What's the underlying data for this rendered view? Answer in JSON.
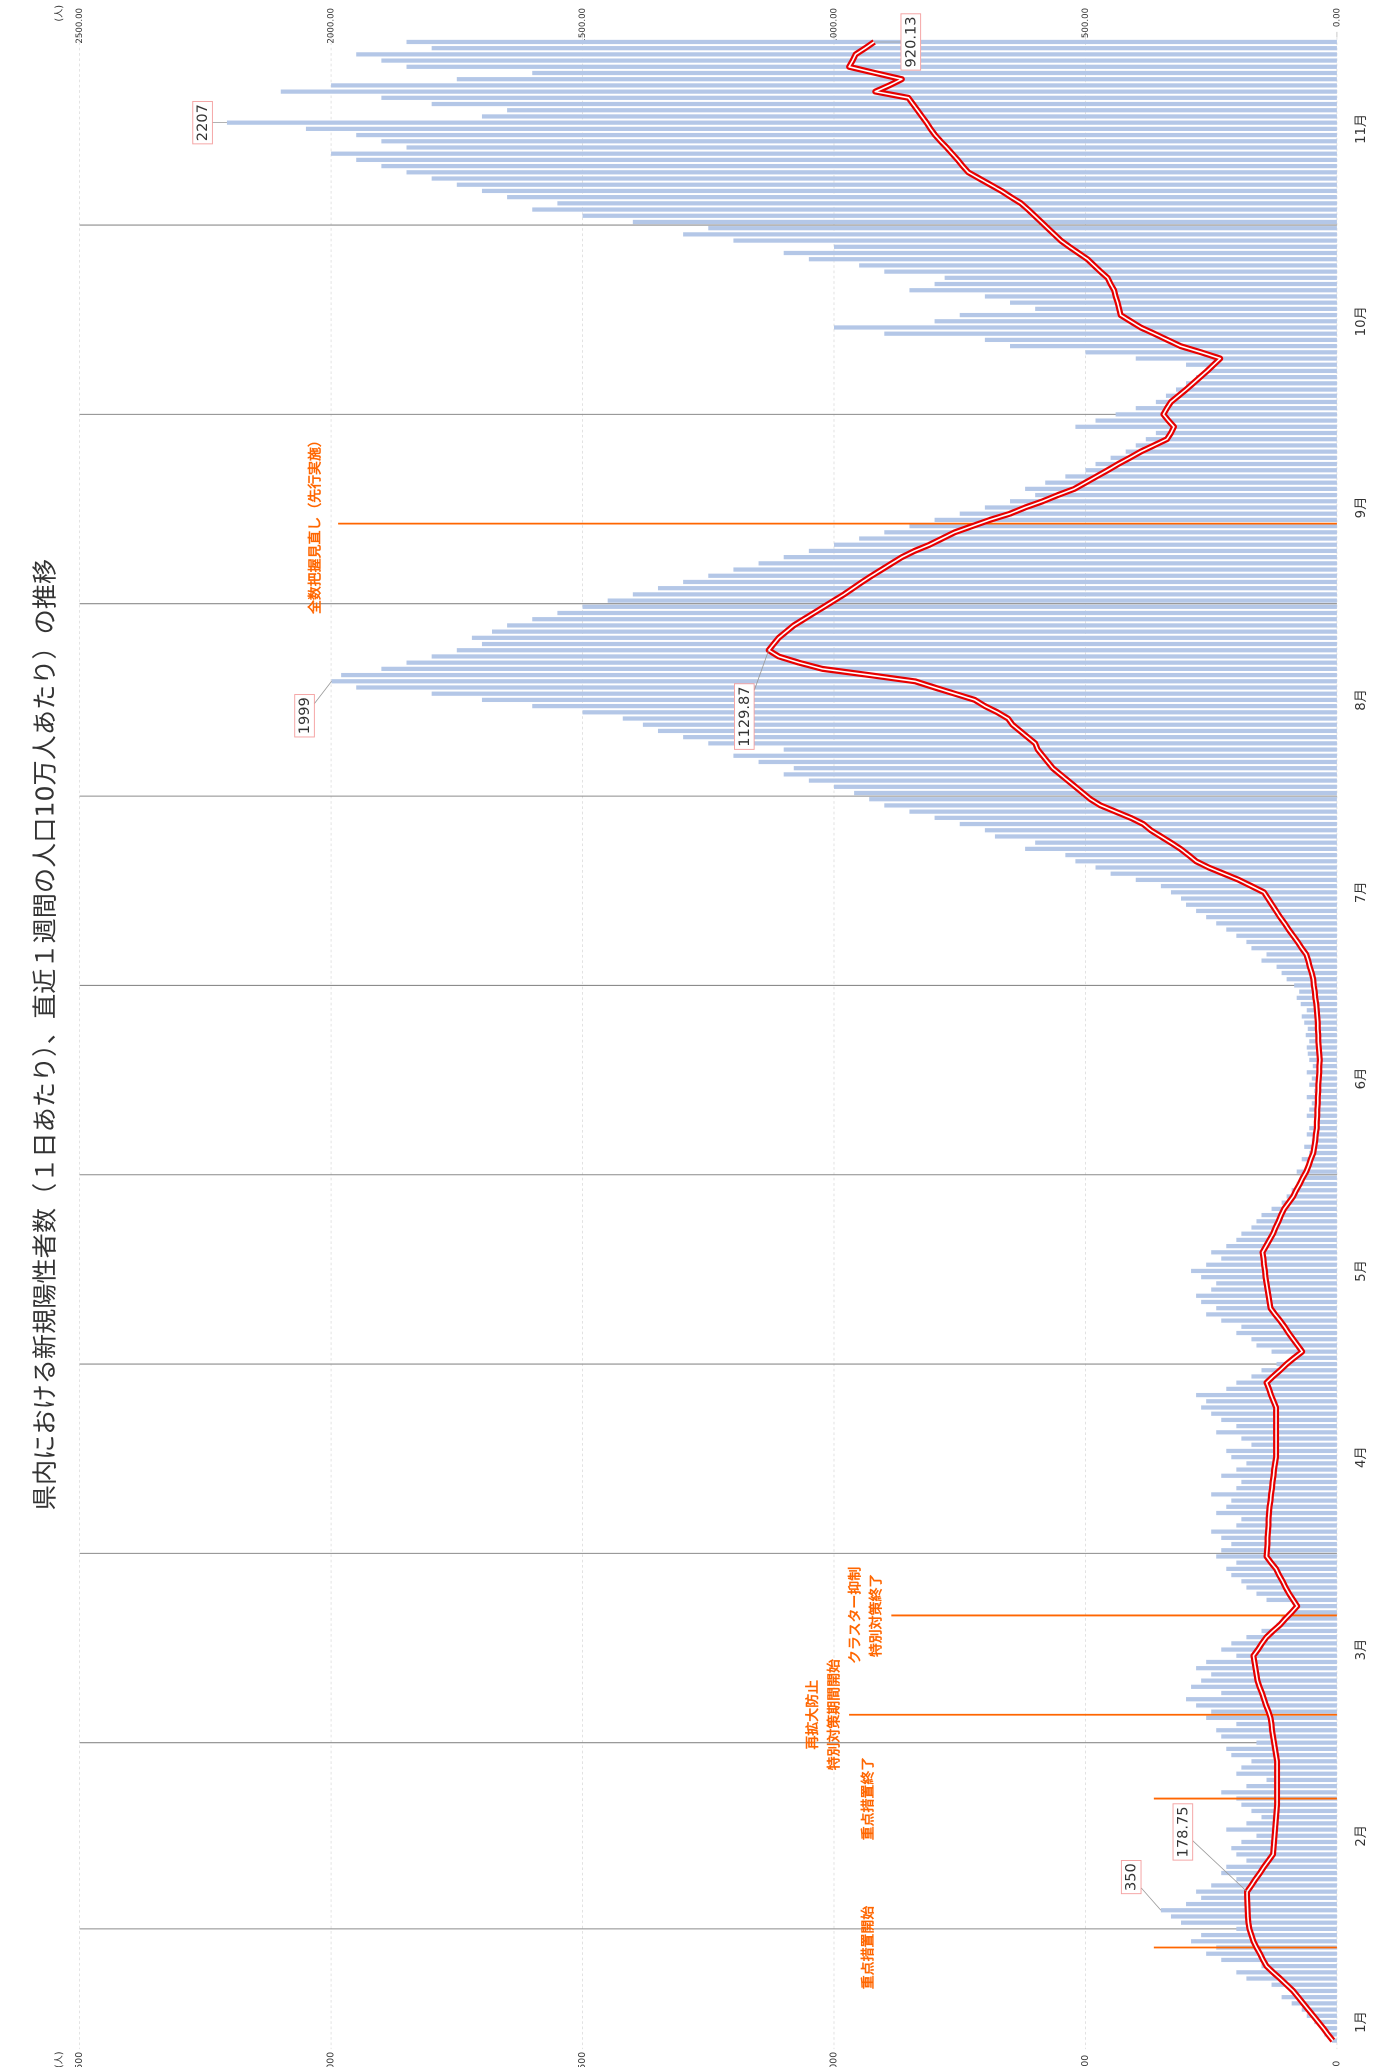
{
  "chart_data": {
    "type": "bar-line",
    "title": "県内における新規陽性者数（１日あたり）、直近１週間の人口10万人あたり）の推移",
    "y_label": "(人)",
    "y2_label": "(人)",
    "categories": [
      null,
      null,
      null,
      "1月",
      null,
      null,
      null,
      null,
      null,
      null,
      null,
      null,
      null,
      null,
      null,
      null,
      null,
      null,
      null,
      null,
      null,
      null,
      null,
      null,
      null,
      null,
      null,
      null,
      null,
      null,
      null,
      null,
      null,
      "2月",
      null,
      null,
      null,
      null,
      null,
      null,
      null,
      null,
      null,
      null,
      null,
      null,
      null,
      null,
      null,
      null,
      null,
      null,
      null,
      null,
      null,
      null,
      null,
      null,
      null,
      null,
      null,
      null,
      null,
      "3月",
      null,
      null,
      null,
      null,
      null,
      null,
      null,
      null,
      null,
      null,
      null,
      null,
      null,
      null,
      null,
      null,
      null,
      null,
      null,
      null,
      null,
      null,
      null,
      null,
      null,
      null,
      null,
      null,
      null,
      null,
      "4月",
      null,
      null,
      null,
      null,
      null,
      null,
      null,
      null,
      null,
      null,
      null,
      null,
      null,
      null,
      null,
      null,
      null,
      null,
      null,
      null,
      null,
      null,
      null,
      null,
      null,
      null,
      null,
      null,
      null,
      "5月",
      null,
      null,
      null,
      null,
      null,
      null,
      null,
      null,
      null,
      null,
      null,
      null,
      null,
      null,
      null,
      null,
      null,
      null,
      null,
      null,
      null,
      null,
      null,
      null,
      null,
      null,
      null,
      null,
      null,
      null,
      "6月",
      null,
      null,
      null,
      null,
      null,
      null,
      null,
      null,
      null,
      null,
      null,
      null,
      null,
      null,
      null,
      null,
      null,
      null,
      null,
      null,
      null,
      null,
      null,
      null,
      null,
      null,
      null,
      null,
      null,
      "7月",
      null,
      null,
      null,
      null,
      null,
      null,
      null,
      null,
      null,
      null,
      null,
      null,
      null,
      null,
      null,
      null,
      null,
      null,
      null,
      null,
      null,
      null,
      null,
      null,
      null,
      null,
      null,
      null,
      null,
      null,
      "8月",
      null,
      null,
      null,
      null,
      null,
      null,
      null,
      null,
      null,
      null,
      null,
      null,
      null,
      null,
      null,
      null,
      null,
      null,
      null,
      null,
      null,
      null,
      null,
      null,
      null,
      null,
      null,
      null,
      null,
      null,
      "9月",
      null,
      null,
      null,
      null,
      null,
      null,
      null,
      null,
      null,
      null,
      null,
      null,
      null,
      null,
      null,
      null,
      null,
      null,
      null,
      null,
      null,
      null,
      null,
      null,
      null,
      null,
      null,
      null,
      null,
      "10月",
      null,
      null,
      null,
      null,
      null,
      null,
      null,
      null,
      null,
      null,
      null,
      null,
      null,
      null,
      null,
      null,
      null,
      null,
      null,
      null,
      null,
      null,
      null,
      null,
      null,
      null,
      null,
      null,
      null,
      null,
      "11月",
      null,
      null,
      null,
      null,
      null,
      null,
      null,
      null,
      null,
      null,
      null,
      null,
      null,
      null
    ],
    "series": [
      {
        "type": "bar",
        "color": "#b4c7e7",
        "labeled": [
          21,
          219,
          309
        ],
        "values": [
          10,
          25,
          30,
          45,
          60,
          70,
          90,
          110,
          85,
          130,
          180,
          200,
          150,
          230,
          260,
          240,
          290,
          270,
          200,
          310,
          330,
          350,
          300,
          270,
          280,
          250,
          200,
          230,
          220,
          180,
          200,
          210,
          190,
          160,
          220,
          180,
          150,
          170,
          190,
          200,
          230,
          180,
          140,
          200,
          190,
          170,
          210,
          220,
          160,
          230,
          240,
          200,
          260,
          250,
          280,
          300,
          230,
          290,
          270,
          250,
          280,
          260,
          200,
          230,
          210,
          180,
          150,
          120,
          110,
          90,
          80,
          140,
          160,
          180,
          190,
          210,
          220,
          200,
          240,
          230,
          210,
          230,
          250,
          200,
          190,
          240,
          220,
          210,
          250,
          200,
          190,
          230,
          200,
          180,
          210,
          220,
          170,
          190,
          240,
          200,
          230,
          250,
          270,
          260,
          280,
          220,
          200,
          170,
          150,
          120,
          90,
          130,
          160,
          170,
          200,
          190,
          230,
          260,
          240,
          270,
          280,
          250,
          240,
          270,
          290,
          260,
          230,
          250,
          220,
          200,
          190,
          170,
          160,
          150,
          130,
          110,
          100,
          90,
          80,
          70,
          80,
          60,
          70,
          55,
          65,
          50,
          60,
          55,
          45,
          60,
          55,
          50,
          60,
          45,
          55,
          50,
          60,
          48,
          55,
          58,
          60,
          55,
          62,
          58,
          65,
          70,
          60,
          72,
          80,
          75,
          85,
          100,
          110,
          120,
          150,
          140,
          170,
          180,
          200,
          220,
          240,
          260,
          280,
          300,
          310,
          330,
          350,
          400,
          450,
          480,
          520,
          540,
          620,
          600,
          680,
          700,
          750,
          800,
          850,
          900,
          930,
          960,
          1000,
          1050,
          1100,
          1080,
          1150,
          1200,
          1100,
          1250,
          1300,
          1350,
          1380,
          1420,
          1500,
          1600,
          1700,
          1800,
          1950,
          1999,
          1980,
          1900,
          1850,
          1800,
          1750,
          1700,
          1720,
          1680,
          1650,
          1600,
          1550,
          1500,
          1450,
          1400,
          1350,
          1300,
          1250,
          1200,
          1150,
          1100,
          1050,
          1000,
          950,
          900,
          850,
          800,
          750,
          700,
          650,
          600,
          620,
          580,
          540,
          500,
          480,
          450,
          420,
          400,
          380,
          360,
          520,
          480,
          440,
          400,
          360,
          340,
          320,
          300,
          280,
          260,
          300,
          400,
          500,
          650,
          700,
          900,
          1000,
          800,
          750,
          600,
          650,
          700,
          850,
          800,
          780,
          900,
          950,
          1050,
          1100,
          1000,
          1200,
          1300,
          1250,
          1400,
          1500,
          1600,
          1550,
          1650,
          1700,
          1750,
          1800,
          1850,
          1900,
          1950,
          2000,
          1850,
          1900,
          1950,
          2050,
          2207,
          1700,
          1650,
          1800,
          1900,
          2100,
          2000,
          1750,
          1600,
          1850,
          1900,
          1950,
          1800,
          1850
        ]
      },
      {
        "type": "line",
        "axis": "y2",
        "color": "#e60000",
        "labeled": [
          24,
          224,
          322
        ],
        "values": [
          8,
          18,
          27,
          37,
          47,
          57,
          67,
          77,
          87,
          100,
          113,
          127,
          140,
          147,
          153,
          160,
          166,
          170,
          174,
          176,
          177,
          177.5,
          178,
          178.5,
          178.75,
          170,
          162,
          153,
          145,
          136,
          127,
          126,
          125,
          124,
          123,
          122,
          121,
          120,
          119,
          119,
          119,
          119,
          119,
          119,
          119,
          119,
          121,
          123,
          125,
          127,
          129,
          130,
          132,
          136,
          141,
          145,
          149,
          154,
          158,
          160,
          162,
          164,
          166,
          157,
          149,
          140,
          127,
          113,
          102,
          90,
          79,
          87,
          95,
          102,
          108,
          115,
          121,
          131,
          140,
          139,
          138,
          138,
          137,
          136,
          136,
          135,
          134,
          132,
          131,
          129,
          128,
          126,
          125,
          123,
          121,
          121,
          121,
          121,
          121,
          121,
          121,
          121,
          121,
          126,
          131,
          135,
          140,
          127,
          113,
          100,
          85,
          69,
          78,
          87,
          96,
          104,
          113,
          123,
          132,
          134,
          136,
          138,
          140,
          142,
          143,
          145,
          146,
          148,
          141,
          134,
          127,
          122,
          116,
          111,
          105,
          96,
          87,
          81,
          74,
          68,
          61,
          56,
          52,
          47,
          45,
          43,
          42,
          40,
          40,
          39,
          39,
          38,
          38,
          37,
          37,
          36,
          35,
          35,
          34,
          35,
          36,
          37,
          37,
          38,
          38,
          39,
          40,
          41,
          43,
          44,
          46,
          47,
          50,
          54,
          57,
          61,
          70,
          78,
          87,
          96,
          104,
          113,
          121,
          129,
          137,
          145,
          170,
          195,
          225,
          255,
          280,
          295,
          311,
          330,
          350,
          370,
          385,
          410,
          440,
          470,
          490,
          505,
          520,
          535,
          550,
          565,
          575,
          585,
          595,
          600,
          615,
          630,
          645,
          654,
          675,
          700,
          720,
          760,
          800,
          839,
          930,
          1023,
          1070,
          1110,
          1129.87,
          1120,
          1110,
          1095,
          1080,
          1060,
          1040,
          1020,
          1000,
          980,
          962,
          944,
          925,
          905,
          885,
          865,
          840,
          810,
          785,
          760,
          725,
          690,
          650,
          620,
          585,
          555,
          522,
          500,
          478,
          456,
          435,
          412,
          390,
          364,
          338,
          330,
          324,
          335,
          345,
          338,
          330,
          315,
          300,
          286,
          272,
          258,
          245,
          232,
          270,
          311,
          337,
          363,
          390,
          410,
          430,
          433,
          436,
          440,
          443,
          450,
          456,
          470,
          483,
          496,
          514,
          532,
          549,
          562,
          575,
          588,
          601,
          614,
          628,
          648,
          667,
          689,
          711,
          733,
          744,
          754,
          765,
          776,
          788,
          799,
          808,
          816,
          825,
          834,
          843,
          852,
          918,
          890,
          865,
          918,
          970,
          963,
          957,
          938,
          920.13
        ]
      }
    ],
    "ylim": [
      0,
      2500
    ],
    "yticks": [
      0,
      500,
      1000,
      1500,
      2000,
      2500
    ],
    "y2lim": [
      0,
      2500
    ],
    "y2ticks": [
      {
        "value": 0,
        "label": "0.00"
      },
      {
        "value": 500,
        "label": "500.00"
      },
      {
        "value": 1000,
        "label": "1000.00"
      },
      {
        "value": 1500,
        "label": "1500.00"
      },
      {
        "value": 2000,
        "label": "2000.00"
      },
      {
        "value": 2500,
        "label": "2500.00"
      }
    ],
    "grid": true,
    "annotations": [
      {
        "text": [
          "重点措置開始"
        ],
        "index": 15,
        "value": 364
      },
      {
        "text": [
          "重点措置終了"
        ],
        "index": 39,
        "value": 364
      },
      {
        "text": [
          "再拡大防止",
          "特別対策期間開始"
        ],
        "index": 52.5,
        "value": 970
      },
      {
        "text": [
          "クラスター抑制",
          "特別対策終了"
        ],
        "index": 68.5,
        "value": 886
      },
      {
        "text": [
          "全数把握見直し（先行実施）"
        ],
        "index": 244.4,
        "value": 1986
      }
    ],
    "annotation_color": "#ff6600"
  }
}
